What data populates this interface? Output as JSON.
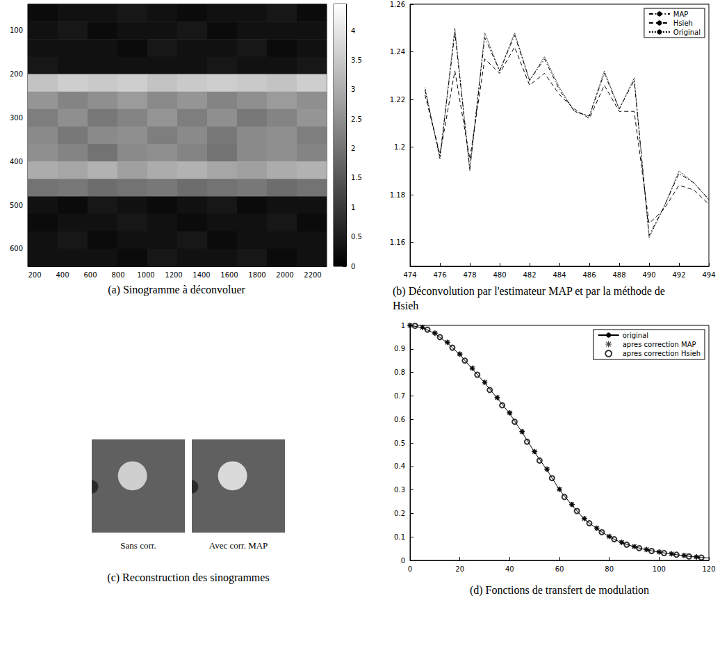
{
  "chart_data": [
    {
      "type": "heatmap",
      "title": "(a) Sinogramme à déconvoluer",
      "x_edges": [
        150,
        365,
        580,
        795,
        1010,
        1225,
        1440,
        1655,
        1870,
        2085,
        2300
      ],
      "y_edges": [
        40,
        80,
        120,
        160,
        200,
        240,
        280,
        320,
        360,
        400,
        440,
        480,
        520,
        560,
        600,
        640
      ],
      "cells": [
        [
          0.2,
          0.3,
          0.3,
          0.4,
          0.3,
          0.2,
          0.3,
          0.3,
          0.4,
          0.2
        ],
        [
          0.3,
          0.4,
          0.2,
          0.3,
          0.3,
          0.4,
          0.2,
          0.3,
          0.3,
          0.3
        ],
        [
          0.3,
          0.3,
          0.3,
          0.2,
          0.4,
          0.3,
          0.3,
          0.4,
          0.2,
          0.3
        ],
        [
          0.4,
          0.3,
          0.3,
          0.3,
          0.3,
          0.3,
          0.4,
          0.3,
          0.3,
          0.4
        ],
        [
          3.4,
          3.6,
          3.5,
          3.6,
          3.4,
          3.5,
          3.6,
          3.5,
          3.4,
          3.6
        ],
        [
          2.6,
          2.3,
          2.5,
          2.7,
          2.4,
          2.6,
          2.3,
          2.5,
          2.7,
          2.5
        ],
        [
          2.2,
          2.5,
          2.1,
          2.3,
          2.6,
          2.2,
          2.5,
          2.1,
          2.3,
          2.6
        ],
        [
          2.4,
          2.1,
          2.4,
          2.5,
          2.2,
          2.4,
          2.1,
          2.4,
          2.5,
          2.2
        ],
        [
          2.5,
          2.3,
          2.0,
          2.4,
          2.5,
          2.3,
          2.0,
          2.4,
          2.5,
          2.3
        ],
        [
          3.0,
          2.9,
          3.1,
          2.8,
          3.0,
          3.1,
          2.9,
          2.8,
          3.0,
          3.1
        ],
        [
          2.0,
          2.1,
          1.9,
          2.0,
          2.1,
          1.9,
          2.0,
          2.1,
          1.9,
          2.0
        ],
        [
          0.3,
          0.2,
          0.4,
          0.3,
          0.2,
          0.3,
          0.4,
          0.2,
          0.3,
          0.3
        ],
        [
          0.2,
          0.3,
          0.3,
          0.4,
          0.3,
          0.2,
          0.3,
          0.3,
          0.4,
          0.2
        ],
        [
          0.3,
          0.4,
          0.2,
          0.3,
          0.3,
          0.4,
          0.2,
          0.3,
          0.3,
          0.3
        ],
        [
          0.3,
          0.3,
          0.3,
          0.2,
          0.4,
          0.3,
          0.3,
          0.4,
          0.2,
          0.3
        ]
      ],
      "xlim": [
        150,
        2300
      ],
      "ylim": [
        40,
        640
      ],
      "xticks": [
        200,
        400,
        600,
        800,
        1000,
        1200,
        1400,
        1600,
        1800,
        2000,
        2200
      ],
      "yticks": [
        100,
        200,
        300,
        400,
        500,
        600
      ],
      "colorbar_range": [
        0,
        4.45
      ],
      "colorbar_ticks": [
        0,
        0.5,
        1,
        1.5,
        2,
        2.5,
        3,
        3.5,
        4
      ],
      "grid": false
    },
    {
      "type": "line",
      "title": "(b) Déconvolution par l'estimateur MAP et par la méthode de Hsieh",
      "x": [
        475,
        476,
        477,
        478,
        479,
        480,
        481,
        482,
        483,
        484,
        485,
        486,
        487,
        488,
        489,
        490,
        491,
        492,
        493,
        494
      ],
      "series": [
        {
          "name": "MAP",
          "color": "#000000",
          "line_style": "dashdot",
          "marker": "none",
          "values": [
            1.224,
            1.196,
            1.248,
            1.191,
            1.246,
            1.232,
            1.247,
            1.228,
            1.237,
            1.224,
            1.215,
            1.213,
            1.231,
            1.216,
            1.228,
            1.163,
            1.175,
            1.189,
            1.185,
            1.178
          ]
        },
        {
          "name": "Hsieh",
          "color": "#000000",
          "line_style": "dashed",
          "marker": "none",
          "values": [
            1.222,
            1.197,
            1.232,
            1.195,
            1.237,
            1.231,
            1.242,
            1.226,
            1.231,
            1.222,
            1.216,
            1.212,
            1.226,
            1.215,
            1.215,
            1.168,
            1.174,
            1.184,
            1.182,
            1.176
          ]
        },
        {
          "name": "Original",
          "color": "#000000",
          "line_style": "dotted",
          "marker": "none",
          "values": [
            1.225,
            1.195,
            1.25,
            1.19,
            1.248,
            1.232,
            1.248,
            1.228,
            1.238,
            1.225,
            1.215,
            1.213,
            1.232,
            1.216,
            1.229,
            1.162,
            1.175,
            1.19,
            1.185,
            1.178
          ]
        }
      ],
      "xlim": [
        474,
        494
      ],
      "ylim": [
        1.15,
        1.26
      ],
      "xticks": [
        474,
        476,
        478,
        480,
        482,
        484,
        486,
        488,
        490,
        492,
        494
      ],
      "yticks": [
        1.16,
        1.18,
        1.2,
        1.22,
        1.24,
        1.26
      ],
      "legend": "upper right",
      "grid": false
    },
    {
      "type": "image",
      "title": "(c) Reconstruction des sinogrammes",
      "tick_labels": false,
      "panels": [
        {
          "label": "Sans corr.",
          "color": "#606060",
          "xlim": [
            0,
            256
          ],
          "ylim": [
            0,
            256
          ],
          "discs": [
            {
              "x": 112,
              "y": 100,
              "r": 40,
              "color": "#cfcfcf"
            },
            {
              "x": 0,
              "y": 130,
              "r": 18,
              "color": "#2c2c2c"
            }
          ]
        },
        {
          "label": "Avec corr. MAP",
          "color": "#606060",
          "xlim": [
            0,
            256
          ],
          "ylim": [
            0,
            256
          ],
          "discs": [
            {
              "x": 112,
              "y": 100,
              "r": 40,
              "color": "#dadada"
            },
            {
              "x": 0,
              "y": 130,
              "r": 18,
              "color": "#2c2c2c"
            }
          ]
        }
      ]
    },
    {
      "type": "line",
      "title": "(d) Fonctions de transfert de modulation",
      "series": [
        {
          "name": "original",
          "type": "line",
          "color": "#000000",
          "line_style": "solid",
          "marker": "none",
          "x": [
            0,
            5,
            10,
            15,
            20,
            25,
            30,
            35,
            40,
            45,
            50,
            55,
            60,
            65,
            70,
            75,
            80,
            85,
            90,
            95,
            100,
            105,
            110,
            115,
            120
          ],
          "values": [
            1,
            0.99,
            0.965,
            0.925,
            0.875,
            0.815,
            0.755,
            0.69,
            0.625,
            0.545,
            0.46,
            0.385,
            0.3,
            0.235,
            0.175,
            0.135,
            0.1,
            0.075,
            0.058,
            0.045,
            0.035,
            0.027,
            0.02,
            0.014,
            0.01
          ]
        },
        {
          "name": "apres correction MAP",
          "type": "scatter",
          "color": "#000000",
          "marker": "asterisk",
          "x": [
            0,
            5,
            10,
            15,
            20,
            25,
            30,
            35,
            40,
            45,
            50,
            55,
            60,
            65,
            70,
            75,
            80,
            85,
            90,
            95,
            100,
            105,
            110,
            115
          ],
          "values": [
            1,
            0.992,
            0.967,
            0.928,
            0.878,
            0.818,
            0.758,
            0.693,
            0.628,
            0.548,
            0.463,
            0.388,
            0.303,
            0.238,
            0.178,
            0.137,
            0.102,
            0.077,
            0.059,
            0.046,
            0.036,
            0.028,
            0.021,
            0.015
          ]
        },
        {
          "name": "apres correction Hsieh",
          "type": "scatter",
          "color": "#000000",
          "marker": "circle",
          "x": [
            2,
            7,
            12,
            17,
            22,
            27,
            32,
            37,
            42,
            47,
            52,
            57,
            62,
            67,
            72,
            77,
            82,
            87,
            92,
            97,
            102,
            107,
            112,
            117
          ],
          "values": [
            0.998,
            0.982,
            0.95,
            0.905,
            0.85,
            0.79,
            0.725,
            0.66,
            0.59,
            0.505,
            0.425,
            0.35,
            0.27,
            0.21,
            0.158,
            0.12,
            0.09,
            0.067,
            0.052,
            0.04,
            0.031,
            0.024,
            0.017,
            0.012
          ]
        }
      ],
      "xlim": [
        0,
        120
      ],
      "ylim": [
        0,
        1
      ],
      "xticks": [
        0,
        20,
        40,
        60,
        80,
        100,
        120
      ],
      "yticks": [
        0,
        0.1,
        0.2,
        0.3,
        0.4,
        0.5,
        0.6,
        0.7,
        0.8,
        0.9,
        1
      ],
      "legend": "upper right",
      "grid": false
    }
  ]
}
